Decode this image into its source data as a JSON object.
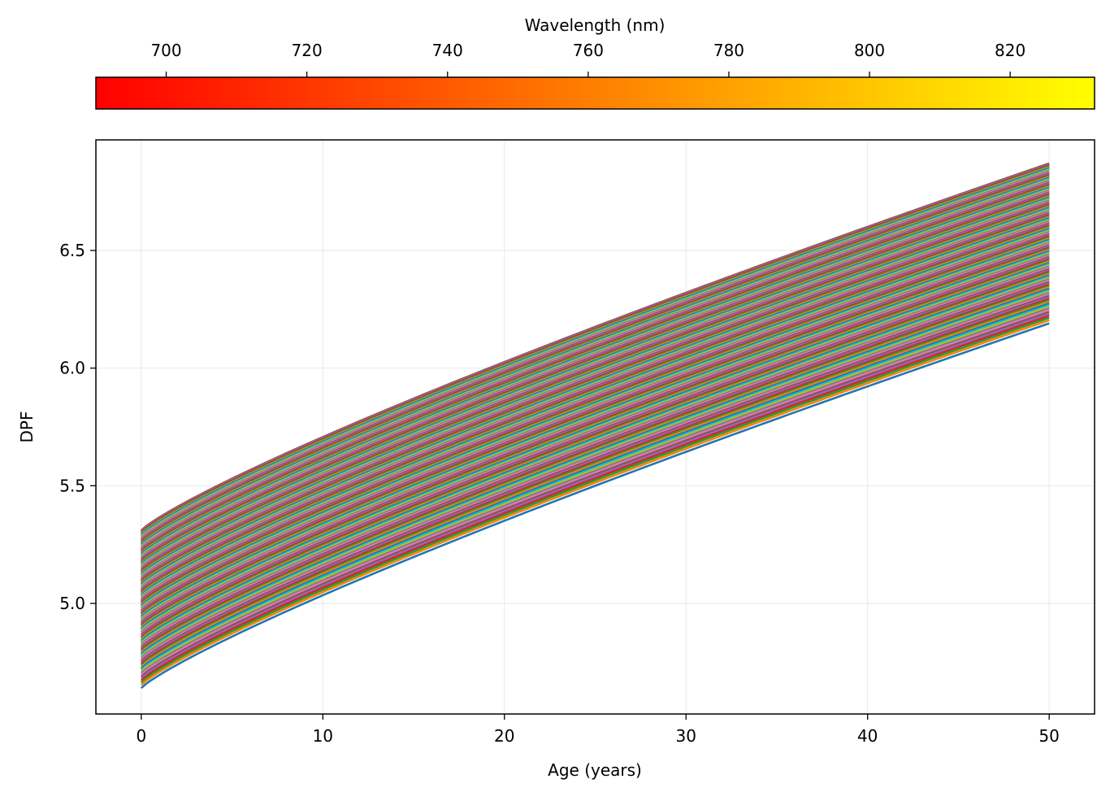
{
  "colorbar": {
    "label": "Wavelength (nm)",
    "range": [
      690,
      832
    ],
    "ticks": [
      700,
      720,
      740,
      760,
      780,
      800,
      820
    ],
    "tick_labels": [
      "700",
      "720",
      "740",
      "760",
      "780",
      "800",
      "820"
    ],
    "colormap": "autumn",
    "colors": [
      "#ff0000",
      "#ffff00"
    ]
  },
  "chart_data": {
    "type": "line",
    "title": "",
    "xlabel": "Age (years)",
    "ylabel": "DPF",
    "xlim": [
      -2.5,
      52.5
    ],
    "ylim": [
      4.53,
      6.97
    ],
    "xticks": [
      0,
      10,
      20,
      30,
      40,
      50
    ],
    "xtick_labels": [
      "0",
      "10",
      "20",
      "30",
      "40",
      "50"
    ],
    "yticks": [
      5.0,
      5.5,
      6.0,
      6.5
    ],
    "ytick_labels": [
      "5.0",
      "5.5",
      "6.0",
      "6.5"
    ],
    "grid": true,
    "x_range": [
      0,
      50
    ],
    "series_count": 136,
    "lowest_series": {
      "y_at_x0": 4.64,
      "y_at_x50": 6.19
    },
    "highest_series": {
      "y_at_x0": 5.31,
      "y_at_x50": 6.87
    },
    "series_colors": [
      "#1f77b4",
      "#ff7f0e",
      "#2ca02c",
      "#d62728",
      "#9467bd",
      "#8c564b",
      "#e377c2",
      "#7f7f7f",
      "#bcbd22",
      "#17becf"
    ]
  }
}
